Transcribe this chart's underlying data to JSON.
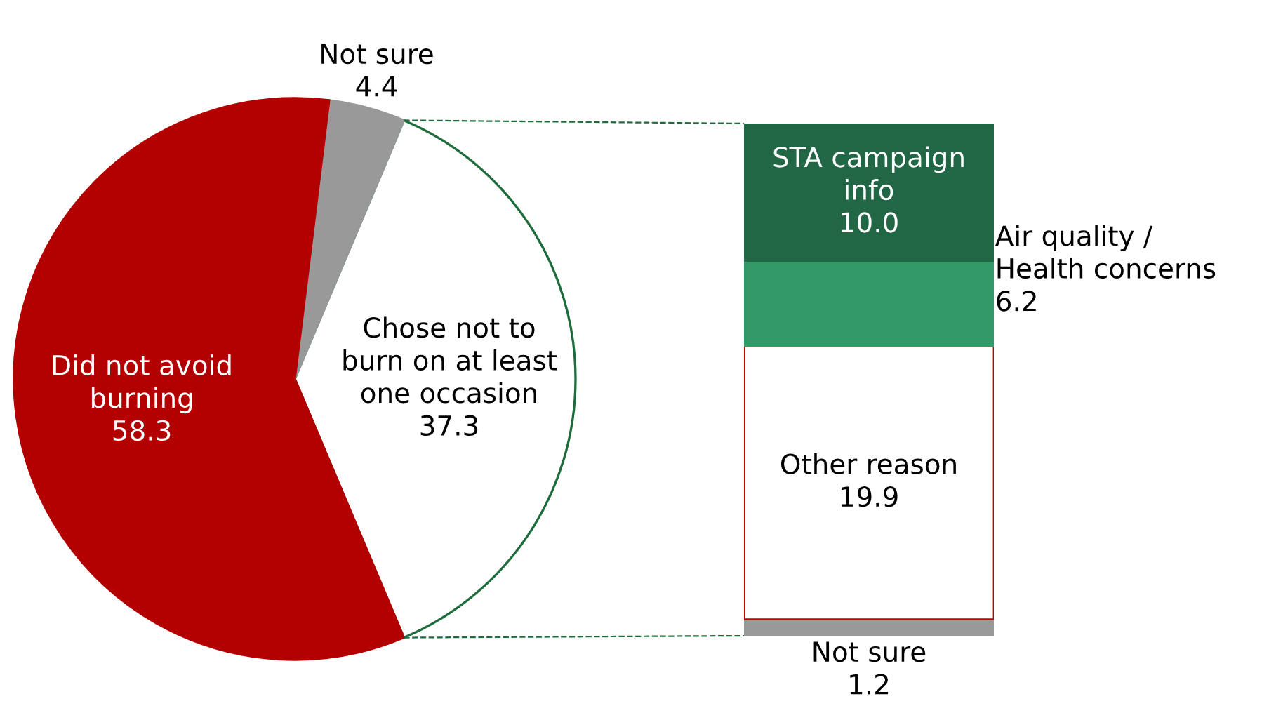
{
  "chart_data": [
    {
      "type": "pie",
      "categories": [
        "Chose not to\nburn on at least\none occasion",
        "Not sure",
        "Did not avoid\nburning"
      ],
      "values": [
        37.3,
        4.4,
        58.3
      ],
      "colors": [
        "#ffffff",
        "#999999",
        "#b30000"
      ],
      "data_labels": true
    },
    {
      "type": "bar",
      "stacked": true,
      "categories": [
        null
      ],
      "data_labels": true,
      "series": [
        {
          "name": "Not sure",
          "color": "#999999",
          "values": [
            1.2
          ],
          "value_labels": [
            "1.2"
          ]
        },
        {
          "name": "Other reason",
          "color": "#ffffff",
          "values": [
            19.9
          ],
          "value_labels": [
            "19.9"
          ]
        },
        {
          "name": "Air quality /\nHealth concerns",
          "color": "#339966",
          "values": [
            6.2
          ],
          "value_labels": [
            "6.2"
          ]
        },
        {
          "name": "STA campaign\ninfo",
          "color": "#216645",
          "values": [
            10.0
          ],
          "value_labels": [
            "10.0"
          ]
        }
      ]
    }
  ]
}
